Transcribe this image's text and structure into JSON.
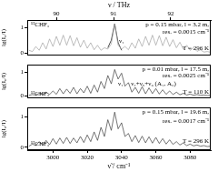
{
  "chart_data": {
    "type": "line",
    "x_label": "ν̃ / cm⁻¹",
    "xlim": [
      2985,
      3092
    ],
    "xticks": [
      3000,
      3020,
      3040,
      3060,
      3080
    ],
    "x2_label": "ν / THz",
    "x2lim": [
      89.49,
      92.7
    ],
    "x2ticks": [
      90,
      91,
      92
    ],
    "x": [
      2986,
      2988,
      2990,
      2992,
      2994,
      2996,
      2998,
      3000,
      3002,
      3004,
      3006,
      3008,
      3010,
      3012,
      3014,
      3016,
      3018,
      3020,
      3022,
      3024,
      3026,
      3028,
      3030,
      3032,
      3034,
      3036,
      3038,
      3040,
      3042,
      3044,
      3046,
      3048,
      3050,
      3052,
      3054,
      3056,
      3058,
      3060,
      3062,
      3064,
      3066,
      3068,
      3070,
      3072,
      3074,
      3076,
      3078,
      3080,
      3082,
      3084,
      3086,
      3088,
      3090,
      3092
    ],
    "panels": [
      {
        "y_label": "lg(I₀/I)",
        "ylim": [
          -0.1,
          1.3
        ],
        "yticks": [
          0,
          1
        ],
        "annotations": [
          "¹²CHF₃",
          "p = 0.15 mbar, l = 3.2 m,",
          "res. = 0.0015 cm⁻¹",
          "T = 296 K",
          "ν₁"
        ],
        "series": [
          {
            "color": "#a0a0a0",
            "values": [
              0.1,
              0.05,
              0.25,
              0.1,
              0.4,
              0.15,
              0.55,
              0.25,
              0.65,
              0.3,
              0.7,
              0.3,
              0.68,
              0.28,
              0.6,
              0.22,
              0.5,
              0.18,
              0.4,
              0.12,
              0.3,
              0.1,
              0.2,
              0.15,
              0.35,
              1.15,
              0.3,
              0.15,
              0.25,
              0.12,
              0.4,
              0.18,
              0.55,
              0.25,
              0.65,
              0.3,
              0.7,
              0.3,
              0.68,
              0.28,
              0.62,
              0.25,
              0.52,
              0.2,
              0.42,
              0.15,
              0.3,
              0.1,
              0.2,
              0.06,
              0.12,
              0.03,
              0.05,
              0.02
            ]
          },
          {
            "color": "#000000",
            "values": [
              null,
              null,
              null,
              null,
              null,
              null,
              null,
              null,
              null,
              null,
              null,
              null,
              null,
              null,
              null,
              null,
              null,
              null,
              null,
              null,
              null,
              null,
              null,
              0.2,
              0.5,
              1.15,
              0.4,
              0.1,
              null,
              null,
              null,
              null,
              null,
              null,
              null,
              null,
              null,
              null,
              null,
              null,
              null,
              null,
              null,
              null,
              null,
              null,
              null,
              null,
              null,
              null,
              null,
              null,
              null,
              null
            ]
          }
        ]
      },
      {
        "y_label": "lg(I₀/I)",
        "ylim": [
          -0.1,
          1.3
        ],
        "yticks": [
          0,
          1
        ],
        "annotations": [
          "p = 0.01 mbar, l = 17.5 m,",
          "res. = 0.0025 cm⁻¹",
          "ν₁",
          "ν₄+ν₅+ν₆ (A₁, A₂)",
          "T = 110 K",
          "¹²CHF₃"
        ],
        "series": [
          {
            "color": "#3a3a3a",
            "values": [
              0.02,
              0.05,
              0.03,
              0.1,
              0.04,
              0.15,
              0.05,
              0.2,
              0.06,
              0.3,
              0.08,
              0.28,
              0.1,
              0.35,
              0.08,
              0.3,
              0.12,
              0.4,
              0.1,
              0.45,
              0.15,
              0.6,
              0.3,
              0.85,
              0.5,
              1.1,
              0.7,
              0.95,
              0.4,
              0.55,
              0.15,
              0.35,
              0.1,
              0.38,
              0.08,
              0.33,
              0.09,
              0.3,
              0.07,
              0.25,
              0.06,
              0.2,
              0.05,
              0.15,
              0.04,
              0.1,
              0.03,
              0.07,
              0.02,
              0.05,
              0.02,
              0.03,
              0.01,
              0.02
            ]
          }
        ]
      },
      {
        "y_label": "lg(I₀/I)",
        "ylim": [
          -0.1,
          1.3
        ],
        "yticks": [
          0,
          1
        ],
        "annotations": [
          "p = 0.15 mbar, l = 19.6 m,",
          "res. = 0.0017 cm⁻¹",
          "T = 296 K",
          "¹²CHF₃"
        ],
        "series": [
          {
            "color": "#3a3a3a",
            "values": [
              0.03,
              0.1,
              0.05,
              0.18,
              0.06,
              0.22,
              0.08,
              0.28,
              0.1,
              0.3,
              0.12,
              0.32,
              0.12,
              0.3,
              0.14,
              0.35,
              0.15,
              0.4,
              0.18,
              0.5,
              0.22,
              0.65,
              0.35,
              0.9,
              0.55,
              1.15,
              0.6,
              0.8,
              0.35,
              0.45,
              0.18,
              0.38,
              0.15,
              0.36,
              0.14,
              0.34,
              0.13,
              0.32,
              0.12,
              0.28,
              0.1,
              0.24,
              0.09,
              0.18,
              0.07,
              0.14,
              0.05,
              0.1,
              0.04,
              0.07,
              0.03,
              0.05,
              0.02,
              0.03
            ]
          }
        ]
      }
    ]
  }
}
